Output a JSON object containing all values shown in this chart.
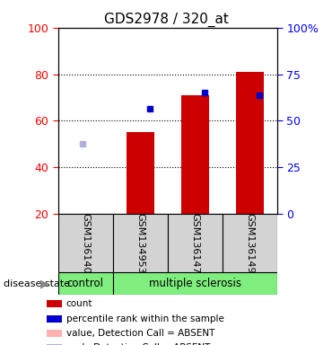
{
  "title": "GDS2978 / 320_at",
  "samples": [
    "GSM136140",
    "GSM134953",
    "GSM136147",
    "GSM136149"
  ],
  "x_positions": [
    0,
    1,
    2,
    3
  ],
  "bar_values": [
    null,
    55,
    71,
    81
  ],
  "absent_bar_values": [
    20,
    null,
    null,
    null
  ],
  "absent_bar_color": "#ffb0b0",
  "blue_square_values": [
    null,
    65,
    72,
    71
  ],
  "blue_square_color": "#0000cc",
  "absent_rank_values": [
    50,
    null,
    null,
    null
  ],
  "absent_rank_color": "#b0b0dd",
  "red_bar_color": "#cc0000",
  "ylim": [
    20,
    100
  ],
  "yticks_left": [
    20,
    40,
    60,
    80,
    100
  ],
  "yticks_right_labels": [
    "0",
    "25",
    "50",
    "75",
    "100%"
  ],
  "bar_width": 0.5,
  "legend_entries": [
    {
      "color": "#cc0000",
      "label": "count"
    },
    {
      "color": "#0000cc",
      "label": "percentile rank within the sample"
    },
    {
      "color": "#ffb0b0",
      "label": "value, Detection Call = ABSENT"
    },
    {
      "color": "#b0b0dd",
      "label": "rank, Detection Call = ABSENT"
    }
  ]
}
